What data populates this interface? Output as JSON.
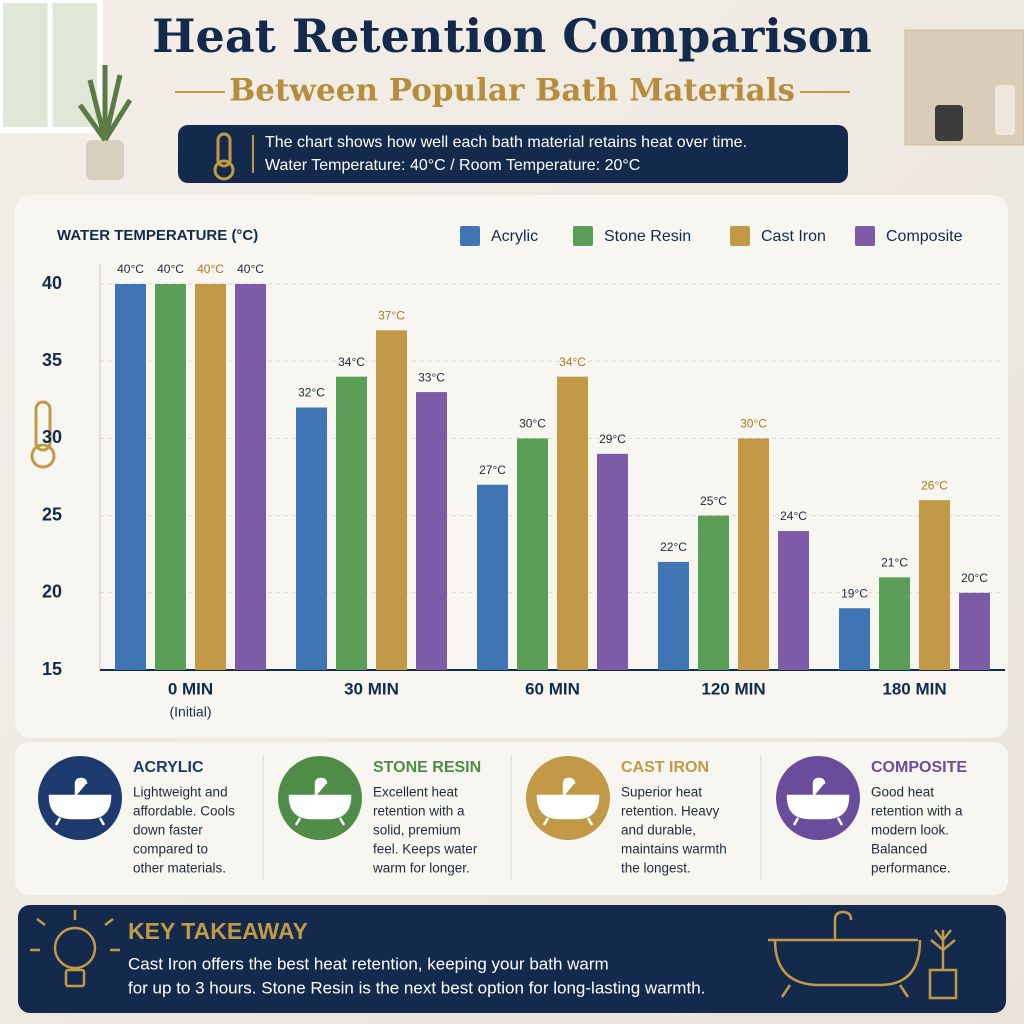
{
  "header": {
    "title": "Heat Retention Comparison",
    "subtitle": "Between Popular Bath Materials",
    "info_lines": [
      "The chart shows how well each bath material retains heat over time.",
      "Water Temperature: 40°C / Room Temperature: 20°C"
    ]
  },
  "chart_data": {
    "type": "bar",
    "y_label": "WATER TEMPERATURE (°C)",
    "categories": [
      "0 MIN",
      "30 MIN",
      "60 MIN",
      "120 MIN",
      "180 MIN"
    ],
    "category_notes": [
      "(Initial)",
      null,
      null,
      null,
      null
    ],
    "series": [
      {
        "name": "Acrylic",
        "color": "#3f74b5",
        "label_color": "#1f2a3a",
        "values": [
          40,
          32,
          27,
          22,
          19
        ],
        "value_labels": [
          "40°C",
          "32°C",
          "27°C",
          "22°C",
          "19°C"
        ]
      },
      {
        "name": "Stone Resin",
        "color": "#5b9e57",
        "label_color": "#1f2a3a",
        "values": [
          40,
          34,
          30,
          25,
          21
        ],
        "value_labels": [
          "40°C",
          "34°C",
          "30°C",
          "25°C",
          "21°C"
        ]
      },
      {
        "name": "Cast Iron",
        "color": "#c29a47",
        "label_color": "#a97a22",
        "values": [
          40,
          37,
          34,
          30,
          26
        ],
        "value_labels": [
          "40°C",
          "37°C",
          "34°C",
          "30°C",
          "26°C"
        ]
      },
      {
        "name": "Composite",
        "color": "#7c5ba7",
        "label_color": "#1f2a3a",
        "values": [
          40,
          33,
          29,
          24,
          20
        ],
        "value_labels": [
          "40°C",
          "33°C",
          "29°C",
          "24°C",
          "20°C"
        ]
      }
    ],
    "ylim": [
      15,
      40
    ],
    "yticks": [
      15,
      20,
      25,
      30,
      35,
      40
    ],
    "grid": true,
    "legend": "top-right"
  },
  "materials": [
    {
      "name": "ACRYLIC",
      "color": "#1d3a6e",
      "description_lines": [
        "Lightweight and",
        "affordable. Cools",
        "down faster",
        "compared to",
        "other materials."
      ]
    },
    {
      "name": "STONE RESIN",
      "color": "#4f8c47",
      "description_lines": [
        "Excellent heat",
        "retention with a",
        "solid, premium",
        "feel. Keeps water",
        "warm for longer."
      ]
    },
    {
      "name": "CAST IRON",
      "color": "#c29a47",
      "description_lines": [
        "Superior heat",
        "retention. Heavy",
        "and durable,",
        "maintains warmth",
        "the longest."
      ]
    },
    {
      "name": "COMPOSITE",
      "color": "#6a4c9c",
      "description_lines": [
        "Good heat",
        "retention with a",
        "modern look.",
        "Balanced",
        "performance."
      ]
    }
  ],
  "takeaway": {
    "title": "KEY TAKEAWAY",
    "lines": [
      "Cast Iron offers the best heat retention, keeping your bath warm",
      "for up to 3 hours. Stone Resin is the next best option for long-lasting warmth."
    ]
  }
}
